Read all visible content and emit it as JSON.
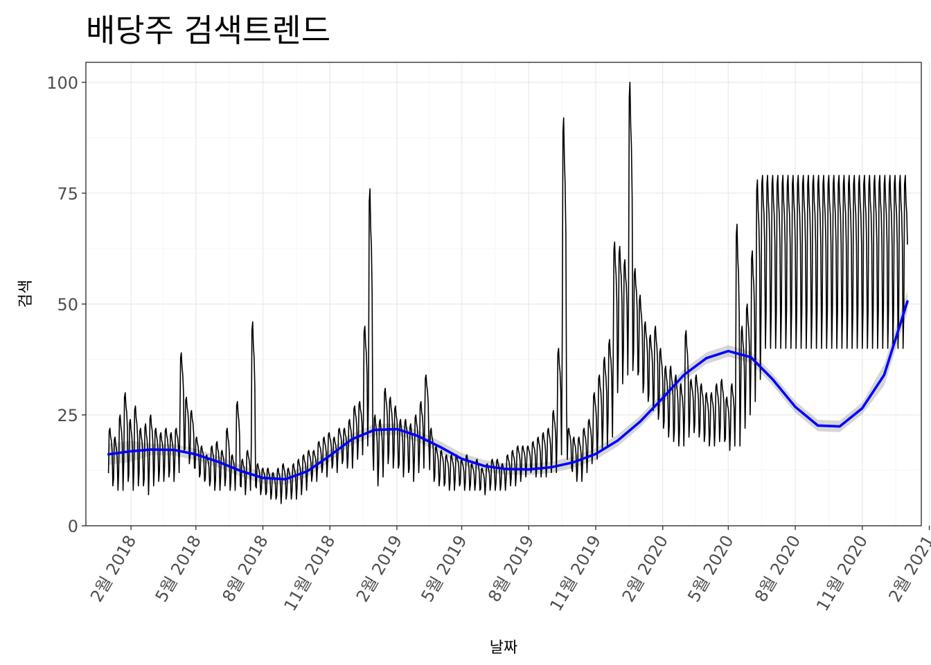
{
  "chart_data": {
    "type": "line",
    "title": "배당주 검색트렌드",
    "xlabel": "날짜",
    "ylabel": "검색",
    "ylim": [
      0,
      104.5
    ],
    "xlim": [
      "2017-12-01",
      "2021-01-21"
    ],
    "y_ticks": [
      0,
      25,
      50,
      75,
      100
    ],
    "x_ticks": [
      {
        "date": "2018-02-01",
        "label": "2월 2018"
      },
      {
        "date": "2018-05-01",
        "label": "5월 2018"
      },
      {
        "date": "2018-08-01",
        "label": "8월 2018"
      },
      {
        "date": "2018-11-01",
        "label": "11월 2018"
      },
      {
        "date": "2019-02-01",
        "label": "2월 2019"
      },
      {
        "date": "2019-05-01",
        "label": "5월 2019"
      },
      {
        "date": "2019-08-01",
        "label": "8월 2019"
      },
      {
        "date": "2019-11-01",
        "label": "11월 2019"
      },
      {
        "date": "2020-02-01",
        "label": "2월 2020"
      },
      {
        "date": "2020-05-01",
        "label": "5월 2020"
      },
      {
        "date": "2020-08-01",
        "label": "8월 2020"
      },
      {
        "date": "2020-11-01",
        "label": "11월 2020"
      },
      {
        "date": "2021-02-01",
        "label": "2월 2021"
      }
    ],
    "grid": true,
    "raw_series": {
      "color": "#000000",
      "x_start": "2018-01-01",
      "x_end": "2021-01-02",
      "weekly_high_low": [
        [
          22,
          9
        ],
        [
          20,
          8
        ],
        [
          25,
          8
        ],
        [
          30,
          10
        ],
        [
          24,
          8
        ],
        [
          27,
          9
        ],
        [
          22,
          9
        ],
        [
          23,
          7
        ],
        [
          25,
          9
        ],
        [
          22,
          10
        ],
        [
          21,
          10
        ],
        [
          22,
          11
        ],
        [
          21,
          10
        ],
        [
          22,
          12
        ],
        [
          39,
          17
        ],
        [
          29,
          14
        ],
        [
          26,
          13
        ],
        [
          20,
          11
        ],
        [
          18,
          10
        ],
        [
          16,
          9
        ],
        [
          18,
          8
        ],
        [
          19,
          8
        ],
        [
          17,
          9
        ],
        [
          22,
          8
        ],
        [
          16,
          8
        ],
        [
          28,
          9
        ],
        [
          15,
          7
        ],
        [
          17,
          8
        ],
        [
          46,
          9
        ],
        [
          14,
          7
        ],
        [
          13,
          7
        ],
        [
          13,
          6
        ],
        [
          12,
          6
        ],
        [
          13,
          5
        ],
        [
          14,
          6
        ],
        [
          13,
          6
        ],
        [
          14,
          6
        ],
        [
          15,
          7
        ],
        [
          16,
          8
        ],
        [
          17,
          10
        ],
        [
          17,
          10
        ],
        [
          19,
          12
        ],
        [
          20,
          11
        ],
        [
          21,
          13
        ],
        [
          20,
          12
        ],
        [
          22,
          14
        ],
        [
          22,
          13
        ],
        [
          24,
          13
        ],
        [
          27,
          15
        ],
        [
          28,
          16
        ],
        [
          45,
          18
        ],
        [
          76,
          17
        ],
        [
          25,
          9
        ],
        [
          24,
          11
        ],
        [
          31,
          14
        ],
        [
          29,
          13
        ],
        [
          27,
          13
        ],
        [
          24,
          11
        ],
        [
          24,
          12
        ],
        [
          23,
          10
        ],
        [
          25,
          12
        ],
        [
          28,
          13
        ],
        [
          34,
          18
        ],
        [
          22,
          10
        ],
        [
          18,
          9
        ],
        [
          17,
          9
        ],
        [
          16,
          8
        ],
        [
          16,
          8
        ],
        [
          16,
          9
        ],
        [
          15,
          8
        ],
        [
          16,
          8
        ],
        [
          14,
          8
        ],
        [
          15,
          8
        ],
        [
          13,
          7
        ],
        [
          14,
          8
        ],
        [
          15,
          8
        ],
        [
          15,
          8
        ],
        [
          14,
          8
        ],
        [
          16,
          9
        ],
        [
          17,
          9
        ],
        [
          18,
          10
        ],
        [
          18,
          11
        ],
        [
          18,
          12
        ],
        [
          19,
          11
        ],
        [
          20,
          11
        ],
        [
          21,
          11
        ],
        [
          22,
          12
        ],
        [
          26,
          12
        ],
        [
          40,
          16
        ],
        [
          92,
          26
        ],
        [
          22,
          13
        ],
        [
          20,
          10
        ],
        [
          20,
          10
        ],
        [
          22,
          12
        ],
        [
          24,
          14
        ],
        [
          30,
          15
        ],
        [
          34,
          17
        ],
        [
          38,
          18
        ],
        [
          42,
          20
        ],
        [
          64,
          30
        ],
        [
          63,
          32
        ],
        [
          60,
          34
        ],
        [
          100,
          35
        ],
        [
          58,
          34
        ],
        [
          52,
          30
        ],
        [
          46,
          28
        ],
        [
          43,
          26
        ],
        [
          45,
          24
        ],
        [
          40,
          22
        ],
        [
          36,
          20
        ],
        [
          36,
          19
        ],
        [
          34,
          18
        ],
        [
          32,
          18
        ],
        [
          44,
          20
        ],
        [
          33,
          21
        ],
        [
          34,
          20
        ],
        [
          32,
          19
        ],
        [
          30,
          18
        ],
        [
          30,
          18
        ],
        [
          32,
          19
        ],
        [
          33,
          19
        ],
        [
          29,
          17
        ],
        [
          32,
          18
        ],
        [
          68,
          18
        ],
        [
          45,
          22
        ],
        [
          50,
          25
        ],
        [
          62,
          28
        ],
        [
          78,
          33
        ],
        [
          79,
          40
        ]
      ]
    },
    "smooth_series": {
      "color": "#0000ff",
      "x": [
        "2018-01-01",
        "2018-02-01",
        "2018-03-01",
        "2018-04-01",
        "2018-05-01",
        "2018-06-01",
        "2018-07-01",
        "2018-08-01",
        "2018-09-01",
        "2018-10-01",
        "2018-11-01",
        "2018-12-01",
        "2019-01-01",
        "2019-02-01",
        "2019-03-01",
        "2019-04-01",
        "2019-05-01",
        "2019-06-01",
        "2019-07-01",
        "2019-08-01",
        "2019-09-01",
        "2019-10-01",
        "2019-11-01",
        "2019-12-01",
        "2020-01-01",
        "2020-02-01",
        "2020-03-01",
        "2020-04-01",
        "2020-05-01",
        "2020-06-01",
        "2020-07-01",
        "2020-08-01",
        "2020-09-01",
        "2020-10-01",
        "2020-11-01",
        "2020-12-01",
        "2021-01-02"
      ],
      "y": [
        16.1,
        16.8,
        17.2,
        17.1,
        16.1,
        14.4,
        12.4,
        10.8,
        10.5,
        12.3,
        15.8,
        19.5,
        21.6,
        21.8,
        20.3,
        17.8,
        15.1,
        13.5,
        12.8,
        12.7,
        13.2,
        14.3,
        16.2,
        19.2,
        23.5,
        28.8,
        34.0,
        37.8,
        39.4,
        38.0,
        33.0,
        26.8,
        22.6,
        22.4,
        26.5,
        34.0,
        50.6
      ]
    }
  }
}
